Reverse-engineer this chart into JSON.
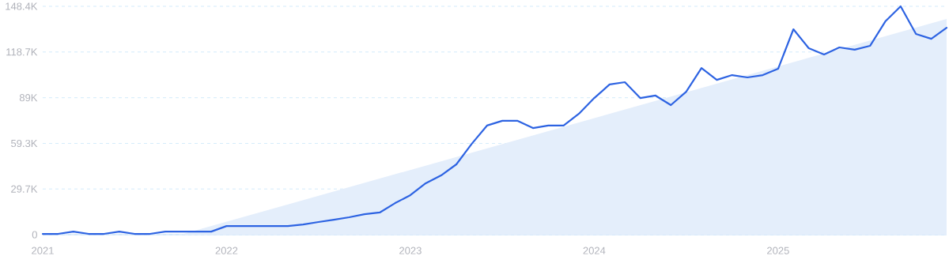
{
  "chart_data": {
    "type": "line",
    "x": [
      "2021-01",
      "2021-02",
      "2021-03",
      "2021-04",
      "2021-05",
      "2021-06",
      "2021-07",
      "2021-08",
      "2021-09",
      "2021-10",
      "2021-11",
      "2021-12",
      "2022-01",
      "2022-02",
      "2022-03",
      "2022-04",
      "2022-05",
      "2022-06",
      "2022-07",
      "2022-08",
      "2022-09",
      "2022-10",
      "2022-11",
      "2022-12",
      "2023-01",
      "2023-02",
      "2023-03",
      "2023-04",
      "2023-05",
      "2023-06",
      "2023-07",
      "2023-08",
      "2023-09",
      "2023-10",
      "2023-11",
      "2023-12",
      "2024-01",
      "2024-02",
      "2024-03",
      "2024-04",
      "2024-05",
      "2024-06",
      "2024-07",
      "2024-08",
      "2024-09",
      "2024-10",
      "2024-11",
      "2024-12",
      "2025-01",
      "2025-02",
      "2025-03",
      "2025-04",
      "2025-05",
      "2025-06",
      "2025-07",
      "2025-08",
      "2025-09",
      "2025-10",
      "2025-11",
      "2025-12"
    ],
    "series": [
      {
        "type": "area",
        "color": "#e4eefb",
        "x": [
          "2021-10",
          "2025-12"
        ],
        "values": [
          0,
          140200
        ]
      },
      {
        "color": "#2d63e2",
        "values": [
          500,
          500,
          2000,
          500,
          500,
          2000,
          500,
          500,
          2000,
          2000,
          2000,
          2000,
          5600,
          5600,
          5600,
          5600,
          5600,
          6600,
          8200,
          9700,
          11300,
          13300,
          14400,
          20500,
          25700,
          33400,
          38500,
          45700,
          59000,
          70900,
          74000,
          74000,
          69300,
          70900,
          70900,
          78600,
          88800,
          97600,
          99100,
          88800,
          90400,
          84200,
          92900,
          108300,
          100600,
          103700,
          102200,
          103700,
          107800,
          133500,
          121200,
          117100,
          121700,
          120200,
          122700,
          138600,
          148400,
          130400,
          127300,
          134500
        ]
      }
    ],
    "xlim": [
      "2021-01",
      "2025-12"
    ],
    "xticks": [
      {
        "value": "2021-01",
        "label": "2021"
      },
      {
        "value": "2022-01",
        "label": "2022"
      },
      {
        "value": "2023-01",
        "label": "2023"
      },
      {
        "value": "2024-01",
        "label": "2024"
      },
      {
        "value": "2025-01",
        "label": "2025"
      }
    ],
    "ylim": [
      0,
      148400
    ],
    "yticks": [
      0,
      {
        "value": 29700,
        "label": "29.7K"
      },
      {
        "value": 59300,
        "label": "59.3K"
      },
      {
        "value": 89000,
        "label": "89K"
      },
      {
        "value": 118700,
        "label": "118.7K"
      },
      {
        "value": 148400,
        "label": "148.4K"
      }
    ],
    "grid": "y",
    "marker": "none",
    "line_style": "solid"
  }
}
